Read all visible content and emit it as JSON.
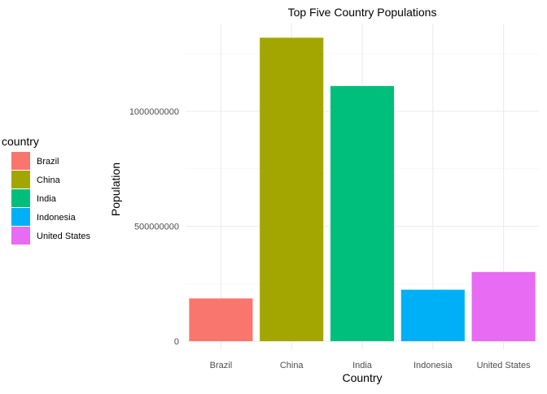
{
  "chart_data": {
    "type": "bar",
    "title": "Top Five Country Populations",
    "xlabel": "Country",
    "ylabel": "Population",
    "categories": [
      "Brazil",
      "China",
      "India",
      "Indonesia",
      "United States"
    ],
    "values": [
      186000000,
      1320000000,
      1110000000,
      224000000,
      301000000
    ],
    "colors": [
      "#F8766D",
      "#A3A500",
      "#00BF7D",
      "#00B0F6",
      "#E76BF3"
    ],
    "ylim": [
      0,
      1390000000
    ],
    "yticks": [
      0,
      500000000,
      1000000000
    ],
    "ytick_labels": [
      "0",
      "500000000",
      "1000000000"
    ],
    "grid": true,
    "legend": {
      "title": "country",
      "position": "left",
      "entries": [
        "Brazil",
        "China",
        "India",
        "Indonesia",
        "United States"
      ]
    }
  }
}
